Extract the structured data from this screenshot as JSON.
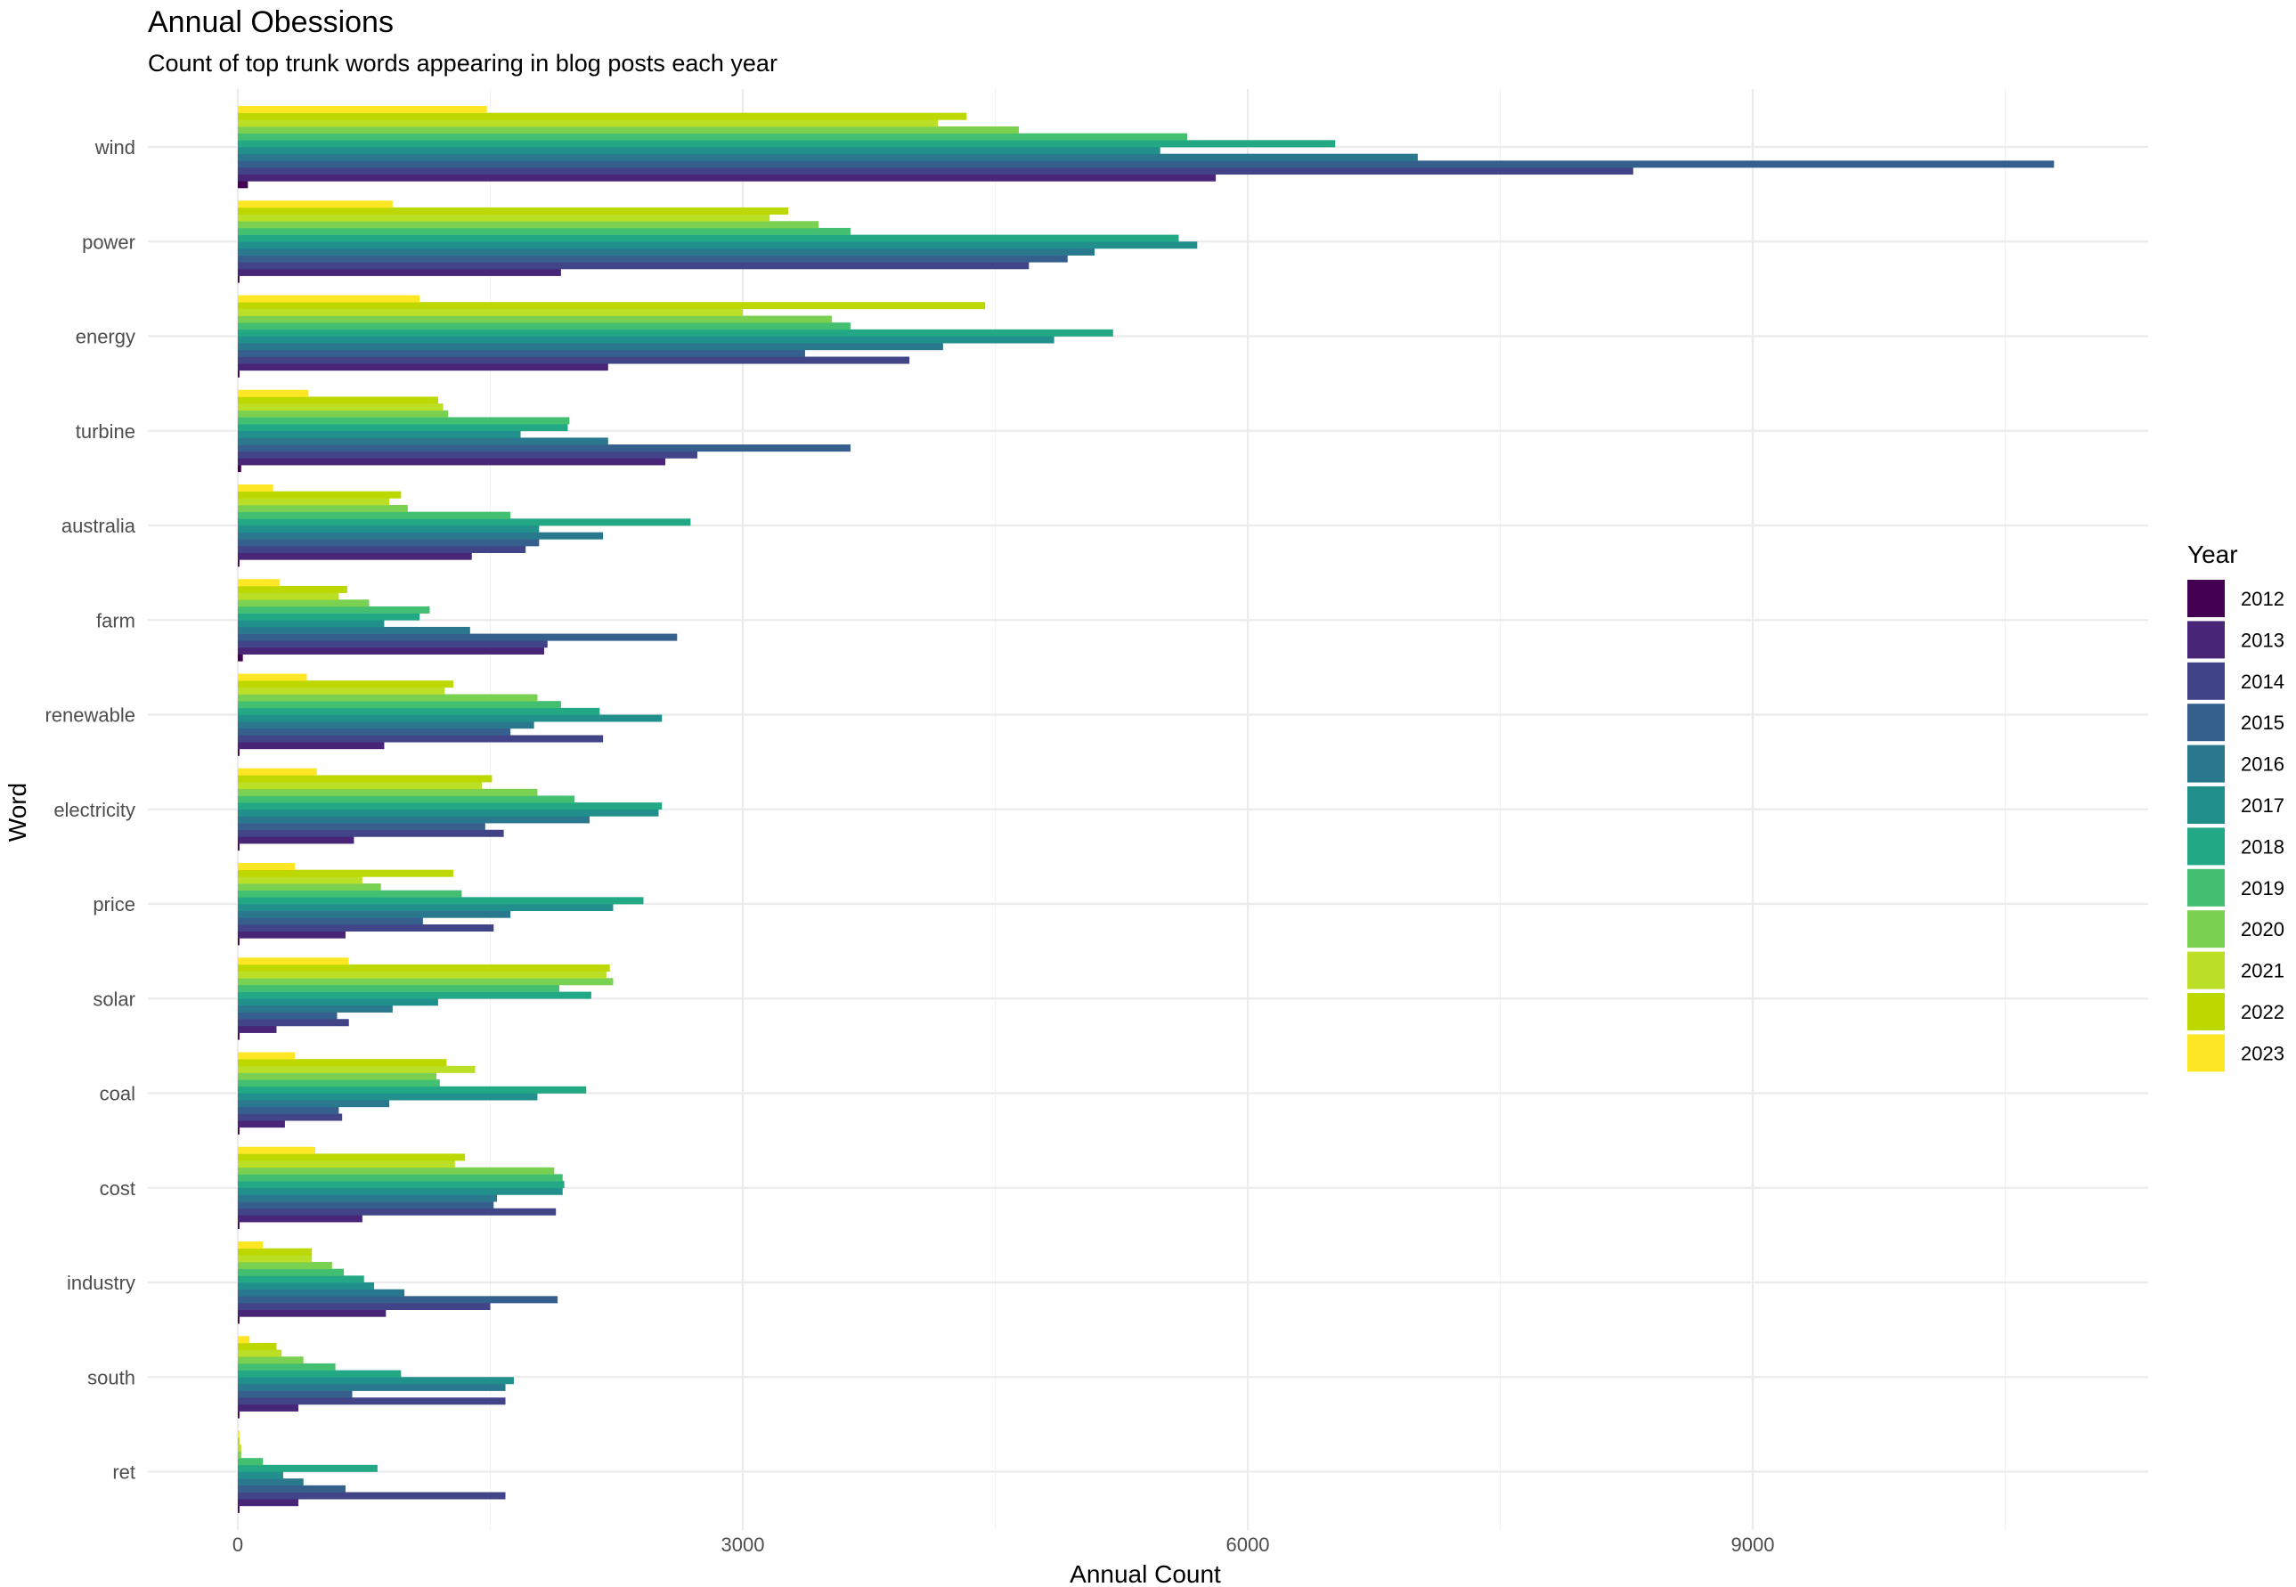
{
  "chart_data": {
    "type": "bar",
    "orientation": "horizontal",
    "title": "Annual Obessions",
    "subtitle": "Count of top trunk words appearing in blog posts each year",
    "xlabel": "Annual Count",
    "ylabel": "Word",
    "xlim": [
      0,
      11300
    ],
    "x_ticks": [
      0,
      3000,
      6000,
      9000
    ],
    "x_tick_labels": [
      "0",
      "3000",
      "6000",
      "9000"
    ],
    "grid": true,
    "legend": {
      "title": "Year",
      "position": "right"
    },
    "categories": [
      "wind",
      "power",
      "energy",
      "turbine",
      "australia",
      "farm",
      "renewable",
      "electricity",
      "price",
      "solar",
      "coal",
      "cost",
      "industry",
      "south",
      "ret"
    ],
    "series": [
      {
        "name": "2012",
        "color": "#440154",
        "values": [
          60,
          10,
          10,
          20,
          10,
          30,
          10,
          10,
          10,
          10,
          10,
          10,
          10,
          10,
          10
        ]
      },
      {
        "name": "2013",
        "color": "#482576",
        "values": [
          5810,
          1920,
          2200,
          2540,
          1390,
          1820,
          870,
          690,
          640,
          230,
          280,
          740,
          880,
          360,
          360
        ]
      },
      {
        "name": "2014",
        "color": "#414487",
        "values": [
          8290,
          4700,
          3990,
          2730,
          1710,
          1840,
          2170,
          1580,
          1520,
          660,
          620,
          1890,
          1500,
          1590,
          1590
        ]
      },
      {
        "name": "2015",
        "color": "#35608D",
        "values": [
          10790,
          4930,
          3370,
          3640,
          1790,
          2610,
          1620,
          1470,
          1100,
          590,
          600,
          1520,
          1900,
          680,
          640
        ]
      },
      {
        "name": "2016",
        "color": "#2A788E",
        "values": [
          7010,
          5090,
          4190,
          2200,
          2170,
          1380,
          1760,
          2090,
          1620,
          920,
          900,
          1540,
          990,
          1590,
          390
        ]
      },
      {
        "name": "2017",
        "color": "#21908C",
        "values": [
          5480,
          5700,
          4850,
          1680,
          1790,
          870,
          2520,
          2500,
          2230,
          1190,
          1780,
          1930,
          810,
          1640,
          270
        ]
      },
      {
        "name": "2018",
        "color": "#22A884",
        "values": [
          6520,
          5590,
          5200,
          1960,
          2690,
          1080,
          2150,
          2520,
          2410,
          2100,
          2070,
          1940,
          750,
          970,
          830
        ]
      },
      {
        "name": "2019",
        "color": "#43BF71",
        "values": [
          5640,
          3640,
          3640,
          1970,
          1620,
          1140,
          1920,
          2000,
          1330,
          1910,
          1200,
          1930,
          630,
          580,
          150
        ]
      },
      {
        "name": "2020",
        "color": "#7AD151",
        "values": [
          4640,
          3450,
          3530,
          1250,
          1010,
          780,
          1780,
          1780,
          850,
          2230,
          1180,
          1880,
          560,
          390,
          20
        ]
      },
      {
        "name": "2021",
        "color": "#BBDF27",
        "values": [
          4160,
          3160,
          3000,
          1220,
          900,
          600,
          1230,
          1450,
          740,
          2190,
          1410,
          1290,
          440,
          260,
          20
        ]
      },
      {
        "name": "2022",
        "color": "#BCD800",
        "values": [
          4330,
          3270,
          4440,
          1190,
          970,
          650,
          1280,
          1510,
          1280,
          2210,
          1240,
          1350,
          440,
          230,
          10
        ]
      },
      {
        "name": "2023",
        "color": "#FDE725",
        "values": [
          1480,
          920,
          1080,
          420,
          210,
          250,
          410,
          470,
          340,
          660,
          340,
          460,
          150,
          70,
          10
        ]
      }
    ]
  }
}
